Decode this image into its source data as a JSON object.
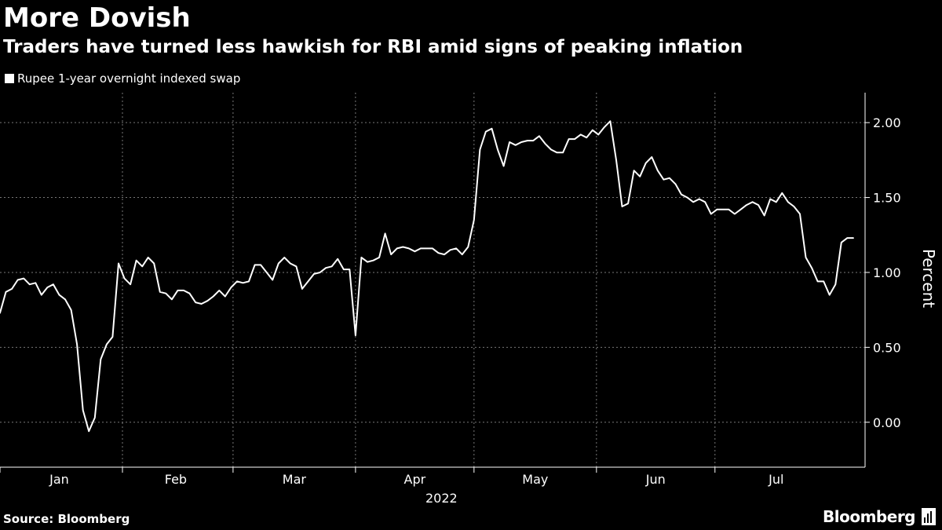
{
  "header": {
    "title": "More Dovish",
    "subtitle": "Traders have turned less hawkish for RBI amid signs of peaking inflation"
  },
  "footer": {
    "source": "Source: Bloomberg",
    "brand": "Bloomberg"
  },
  "colors": {
    "background": "#000000",
    "line": "#ffffff",
    "grid": "#777777"
  },
  "chart_data": {
    "type": "line",
    "title": "More Dovish",
    "subtitle": "Traders have turned less hawkish for RBI amid signs of peaking inflation",
    "xlabel": "2022",
    "ylabel": "Percent",
    "ylim": [
      -0.3,
      2.2
    ],
    "y_ticks": [
      0.0,
      0.5,
      1.0,
      1.5,
      2.0
    ],
    "y_tick_labels": [
      "0.00",
      "0.50",
      "1.00",
      "1.50",
      "2.00"
    ],
    "x_range_day": [
      0,
      219
    ],
    "month_boundaries_day": [
      0,
      31,
      59,
      90,
      120,
      151,
      181
    ],
    "months": [
      {
        "label": "Jan",
        "mid_day": 15
      },
      {
        "label": "Feb",
        "mid_day": 44.5
      },
      {
        "label": "Mar",
        "mid_day": 74.5
      },
      {
        "label": "Apr",
        "mid_day": 105
      },
      {
        "label": "May",
        "mid_day": 135.5
      },
      {
        "label": "Jun",
        "mid_day": 166
      },
      {
        "label": "Jul",
        "mid_day": 196.5
      }
    ],
    "year_label": "2022",
    "legend": [
      "Rupee 1-year overnight indexed swap"
    ],
    "grid": true,
    "series": [
      {
        "name": "Rupee 1-year overnight indexed swap",
        "points": [
          [
            0,
            0.73
          ],
          [
            1.5,
            0.87
          ],
          [
            3,
            0.89
          ],
          [
            4.5,
            0.95
          ],
          [
            6,
            0.96
          ],
          [
            7.5,
            0.92
          ],
          [
            9,
            0.93
          ],
          [
            10.5,
            0.85
          ],
          [
            12,
            0.9
          ],
          [
            13.5,
            0.92
          ],
          [
            15,
            0.85
          ],
          [
            16.5,
            0.82
          ],
          [
            18,
            0.75
          ],
          [
            19.5,
            0.52
          ],
          [
            21,
            0.08
          ],
          [
            22.5,
            -0.06
          ],
          [
            24,
            0.03
          ],
          [
            25.5,
            0.42
          ],
          [
            27,
            0.52
          ],
          [
            28.5,
            0.57
          ],
          [
            30,
            1.06
          ],
          [
            31.5,
            0.96
          ],
          [
            33,
            0.92
          ],
          [
            34.5,
            1.08
          ],
          [
            36,
            1.04
          ],
          [
            37.5,
            1.1
          ],
          [
            39,
            1.06
          ],
          [
            40.5,
            0.87
          ],
          [
            42,
            0.86
          ],
          [
            43.5,
            0.82
          ],
          [
            45,
            0.88
          ],
          [
            46.5,
            0.88
          ],
          [
            48,
            0.86
          ],
          [
            49.5,
            0.8
          ],
          [
            51,
            0.79
          ],
          [
            52.5,
            0.81
          ],
          [
            54,
            0.84
          ],
          [
            55.5,
            0.88
          ],
          [
            57,
            0.84
          ],
          [
            58.5,
            0.9
          ],
          [
            60,
            0.94
          ],
          [
            61.5,
            0.93
          ],
          [
            63,
            0.94
          ],
          [
            64.5,
            1.05
          ],
          [
            66,
            1.05
          ],
          [
            67.5,
            1.0
          ],
          [
            69,
            0.95
          ],
          [
            70.5,
            1.06
          ],
          [
            72,
            1.1
          ],
          [
            73.5,
            1.06
          ],
          [
            75,
            1.04
          ],
          [
            76.5,
            0.89
          ],
          [
            78,
            0.94
          ],
          [
            79.5,
            0.99
          ],
          [
            81,
            1.0
          ],
          [
            82.5,
            1.03
          ],
          [
            84,
            1.04
          ],
          [
            85.5,
            1.09
          ],
          [
            87,
            1.02
          ],
          [
            88.5,
            1.02
          ],
          [
            90,
            0.58
          ],
          [
            91.5,
            1.1
          ],
          [
            93,
            1.07
          ],
          [
            94.5,
            1.08
          ],
          [
            96,
            1.1
          ],
          [
            97.5,
            1.26
          ],
          [
            99,
            1.12
          ],
          [
            100.5,
            1.16
          ],
          [
            102,
            1.17
          ],
          [
            103.5,
            1.16
          ],
          [
            105,
            1.14
          ],
          [
            106.5,
            1.16
          ],
          [
            108,
            1.16
          ],
          [
            109.5,
            1.16
          ],
          [
            111,
            1.13
          ],
          [
            112.5,
            1.12
          ],
          [
            114,
            1.15
          ],
          [
            115.5,
            1.16
          ],
          [
            117,
            1.12
          ],
          [
            118.5,
            1.17
          ],
          [
            120,
            1.35
          ],
          [
            121.5,
            1.82
          ],
          [
            123,
            1.94
          ],
          [
            124.5,
            1.96
          ],
          [
            126,
            1.82
          ],
          [
            127.5,
            1.71
          ],
          [
            129,
            1.87
          ],
          [
            130.5,
            1.85
          ],
          [
            132,
            1.87
          ],
          [
            133.5,
            1.88
          ],
          [
            135,
            1.88
          ],
          [
            136.5,
            1.91
          ],
          [
            138,
            1.86
          ],
          [
            139.5,
            1.82
          ],
          [
            141,
            1.8
          ],
          [
            142.5,
            1.8
          ],
          [
            144,
            1.89
          ],
          [
            145.5,
            1.89
          ],
          [
            147,
            1.92
          ],
          [
            148.5,
            1.9
          ],
          [
            150,
            1.95
          ],
          [
            151.5,
            1.92
          ],
          [
            153,
            1.97
          ],
          [
            154.5,
            2.01
          ],
          [
            156,
            1.75
          ],
          [
            157.5,
            1.44
          ],
          [
            159,
            1.46
          ],
          [
            160.5,
            1.68
          ],
          [
            162,
            1.64
          ],
          [
            163.5,
            1.73
          ],
          [
            165,
            1.77
          ],
          [
            166.5,
            1.68
          ],
          [
            168,
            1.62
          ],
          [
            169.5,
            1.63
          ],
          [
            171,
            1.59
          ],
          [
            172.5,
            1.52
          ],
          [
            174,
            1.5
          ],
          [
            175.5,
            1.47
          ],
          [
            177,
            1.49
          ],
          [
            178.5,
            1.47
          ],
          [
            180,
            1.39
          ],
          [
            181.5,
            1.42
          ],
          [
            183,
            1.42
          ],
          [
            184.5,
            1.42
          ],
          [
            186,
            1.39
          ],
          [
            187.5,
            1.42
          ],
          [
            189,
            1.45
          ],
          [
            190.5,
            1.47
          ],
          [
            192,
            1.45
          ],
          [
            193.5,
            1.38
          ],
          [
            195,
            1.49
          ],
          [
            196.5,
            1.47
          ],
          [
            198,
            1.53
          ],
          [
            199.5,
            1.47
          ],
          [
            201,
            1.44
          ],
          [
            202.5,
            1.39
          ],
          [
            204,
            1.1
          ],
          [
            205.5,
            1.03
          ],
          [
            207,
            0.94
          ],
          [
            208.5,
            0.94
          ],
          [
            210,
            0.85
          ],
          [
            211.5,
            0.92
          ],
          [
            213,
            1.2
          ],
          [
            214.5,
            1.23
          ],
          [
            216,
            1.23
          ]
        ]
      }
    ]
  }
}
